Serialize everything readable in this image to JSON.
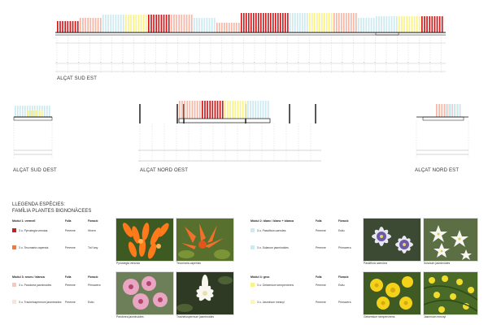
{
  "colors": {
    "red": "#cf1d1f",
    "salmon": "#f6b7a6",
    "lightblue": "#cdeaf0",
    "yellow": "#faf38c",
    "orange": "#f07a40",
    "pink": "#f4c8c0",
    "lightpink": "#fbe2da",
    "lightyellow": "#fbf6b8"
  },
  "elevations": {
    "se": "ALÇAT SUD EST",
    "so": "ALÇAT SUD OEST",
    "no": "ALÇAT NORD OEST",
    "ne": "ALÇAT NORD EST"
  },
  "legend": {
    "title": "LLEGENDA ESPÈCIES:",
    "subtitle": "FAMÍLIA PLANTES BIGNONÀCEES"
  },
  "modules": [
    {
      "title": "Mòdul 1: vermell",
      "headers": [
        "Fulla",
        "Floració"
      ],
      "species": [
        {
          "name": "3 u. Pyrostegia venusta",
          "leaf": "Perenne",
          "bloom": "Hivern",
          "swatch": "red"
        },
        {
          "name": "3 u. Tecomaria capensis",
          "leaf": "Perenne",
          "bloom": "Tot l'any",
          "swatch": "orange"
        }
      ],
      "photos": [
        {
          "caption": "Pyrostegia venusta",
          "icon": "orange-tubular-flowers"
        },
        {
          "caption": "Tecomaria capensis",
          "icon": "orange-flower-cluster"
        }
      ]
    },
    {
      "title": "Mòdul 2: blanc / blanc + blanca",
      "headers": [
        "Fulla",
        "Floració"
      ],
      "species": [
        {
          "name": "3 u. Passiflora caerulea",
          "leaf": "Perenne",
          "bloom": "Estiu",
          "swatch": "lightblue"
        },
        {
          "name": "3 u. Solanum jasminoides",
          "leaf": "Perenne",
          "bloom": "Primavera",
          "swatch": "lightblue"
        }
      ],
      "photos": [
        {
          "caption": "Passiflora caerulea",
          "icon": "passion-flower"
        },
        {
          "caption": "Solanum jasminoides",
          "icon": "white-star-flowers"
        }
      ]
    },
    {
      "title": "Mòdul 3: roses / blanca",
      "headers": [
        "Fulla",
        "Floració"
      ],
      "species": [
        {
          "name": "3 u. Pandorea jasminoides",
          "leaf": "Perenne",
          "bloom": "Primavera",
          "swatch": "pink"
        },
        {
          "name": "3 u. Trachelospermum jasminoides",
          "leaf": "Perenne",
          "bloom": "Estiu",
          "swatch": "lightpink"
        }
      ],
      "photos": [
        {
          "caption": "Pandorea jasminoides",
          "icon": "pink-trumpet-flowers"
        },
        {
          "caption": "Trachelospermum jasminoides",
          "icon": "white-jasmine-flower"
        }
      ]
    },
    {
      "title": "Mòdul 4: groc",
      "headers": [
        "Fulla",
        "Floració"
      ],
      "species": [
        {
          "name": "3 u. Gelsemium sempervirens",
          "leaf": "Perenne",
          "bloom": "Estiu",
          "swatch": "yellow"
        },
        {
          "name": "3 u. Jasminum mesnyi",
          "leaf": "Perenne",
          "bloom": "Primavera",
          "swatch": "lightyellow"
        }
      ],
      "photos": [
        {
          "caption": "Gelsemium sempervirens",
          "icon": "yellow-trumpet-flowers"
        },
        {
          "caption": "Jasminum mesnyi",
          "icon": "yellow-jasmine-flowers"
        }
      ]
    }
  ]
}
